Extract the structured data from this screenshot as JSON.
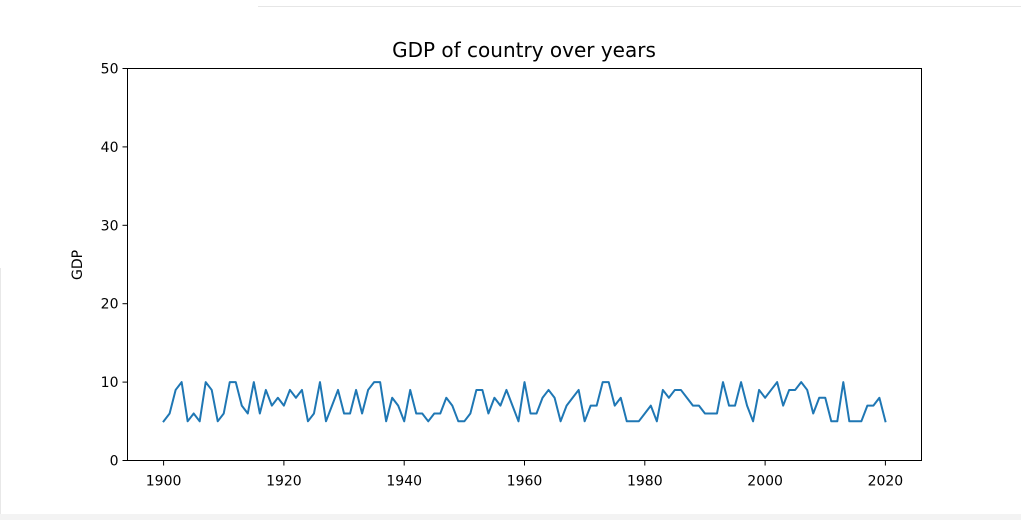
{
  "chart_data": {
    "type": "line",
    "title": "GDP of country over years",
    "xlabel": "",
    "ylabel": "GDP",
    "xlim": [
      1894,
      2026
    ],
    "ylim": [
      0,
      50
    ],
    "xticks": [
      1900,
      1920,
      1940,
      1960,
      1980,
      2000,
      2020
    ],
    "yticks": [
      0,
      10,
      20,
      30,
      40,
      50
    ],
    "grid": false,
    "series": [
      {
        "color": "#1f77b4",
        "x": [
          1900,
          1901,
          1902,
          1903,
          1904,
          1905,
          1906,
          1907,
          1908,
          1909,
          1910,
          1911,
          1912,
          1913,
          1914,
          1915,
          1916,
          1917,
          1918,
          1919,
          1920,
          1921,
          1922,
          1923,
          1924,
          1925,
          1926,
          1927,
          1928,
          1929,
          1930,
          1931,
          1932,
          1933,
          1934,
          1935,
          1936,
          1937,
          1938,
          1939,
          1940,
          1941,
          1942,
          1943,
          1944,
          1945,
          1946,
          1947,
          1948,
          1949,
          1950,
          1951,
          1952,
          1953,
          1954,
          1955,
          1956,
          1957,
          1958,
          1959,
          1960,
          1961,
          1962,
          1963,
          1964,
          1965,
          1966,
          1967,
          1968,
          1969,
          1970,
          1971,
          1972,
          1973,
          1974,
          1975,
          1976,
          1977,
          1978,
          1979,
          1980,
          1981,
          1982,
          1983,
          1984,
          1985,
          1986,
          1987,
          1988,
          1989,
          1990,
          1991,
          1992,
          1993,
          1994,
          1995,
          1996,
          1997,
          1998,
          1999,
          2000,
          2001,
          2002,
          2003,
          2004,
          2005,
          2006,
          2007,
          2008,
          2009,
          2010,
          2011,
          2012,
          2013,
          2014,
          2015,
          2016,
          2017,
          2018,
          2019,
          2020
        ],
        "y": [
          5,
          6,
          9,
          10,
          5,
          6,
          5,
          10,
          9,
          5,
          6,
          10,
          10,
          7,
          6,
          10,
          6,
          9,
          7,
          8,
          7,
          9,
          8,
          9,
          5,
          6,
          10,
          5,
          7,
          9,
          6,
          6,
          9,
          6,
          9,
          10,
          10,
          5,
          8,
          7,
          5,
          9,
          6,
          6,
          5,
          6,
          6,
          8,
          7,
          5,
          5,
          6,
          9,
          9,
          6,
          8,
          7,
          9,
          7,
          5,
          10,
          6,
          6,
          8,
          9,
          8,
          5,
          7,
          8,
          9,
          5,
          7,
          7,
          10,
          10,
          7,
          8,
          5,
          5,
          5,
          6,
          7,
          5,
          9,
          8,
          9,
          9,
          8,
          7,
          7,
          6,
          6,
          6,
          10,
          7,
          7,
          10,
          7,
          5,
          9,
          8,
          9,
          10,
          7,
          9,
          9,
          10,
          9,
          6,
          8,
          8,
          5,
          5,
          10,
          5,
          5,
          5,
          7,
          7,
          8,
          5
        ]
      }
    ]
  }
}
